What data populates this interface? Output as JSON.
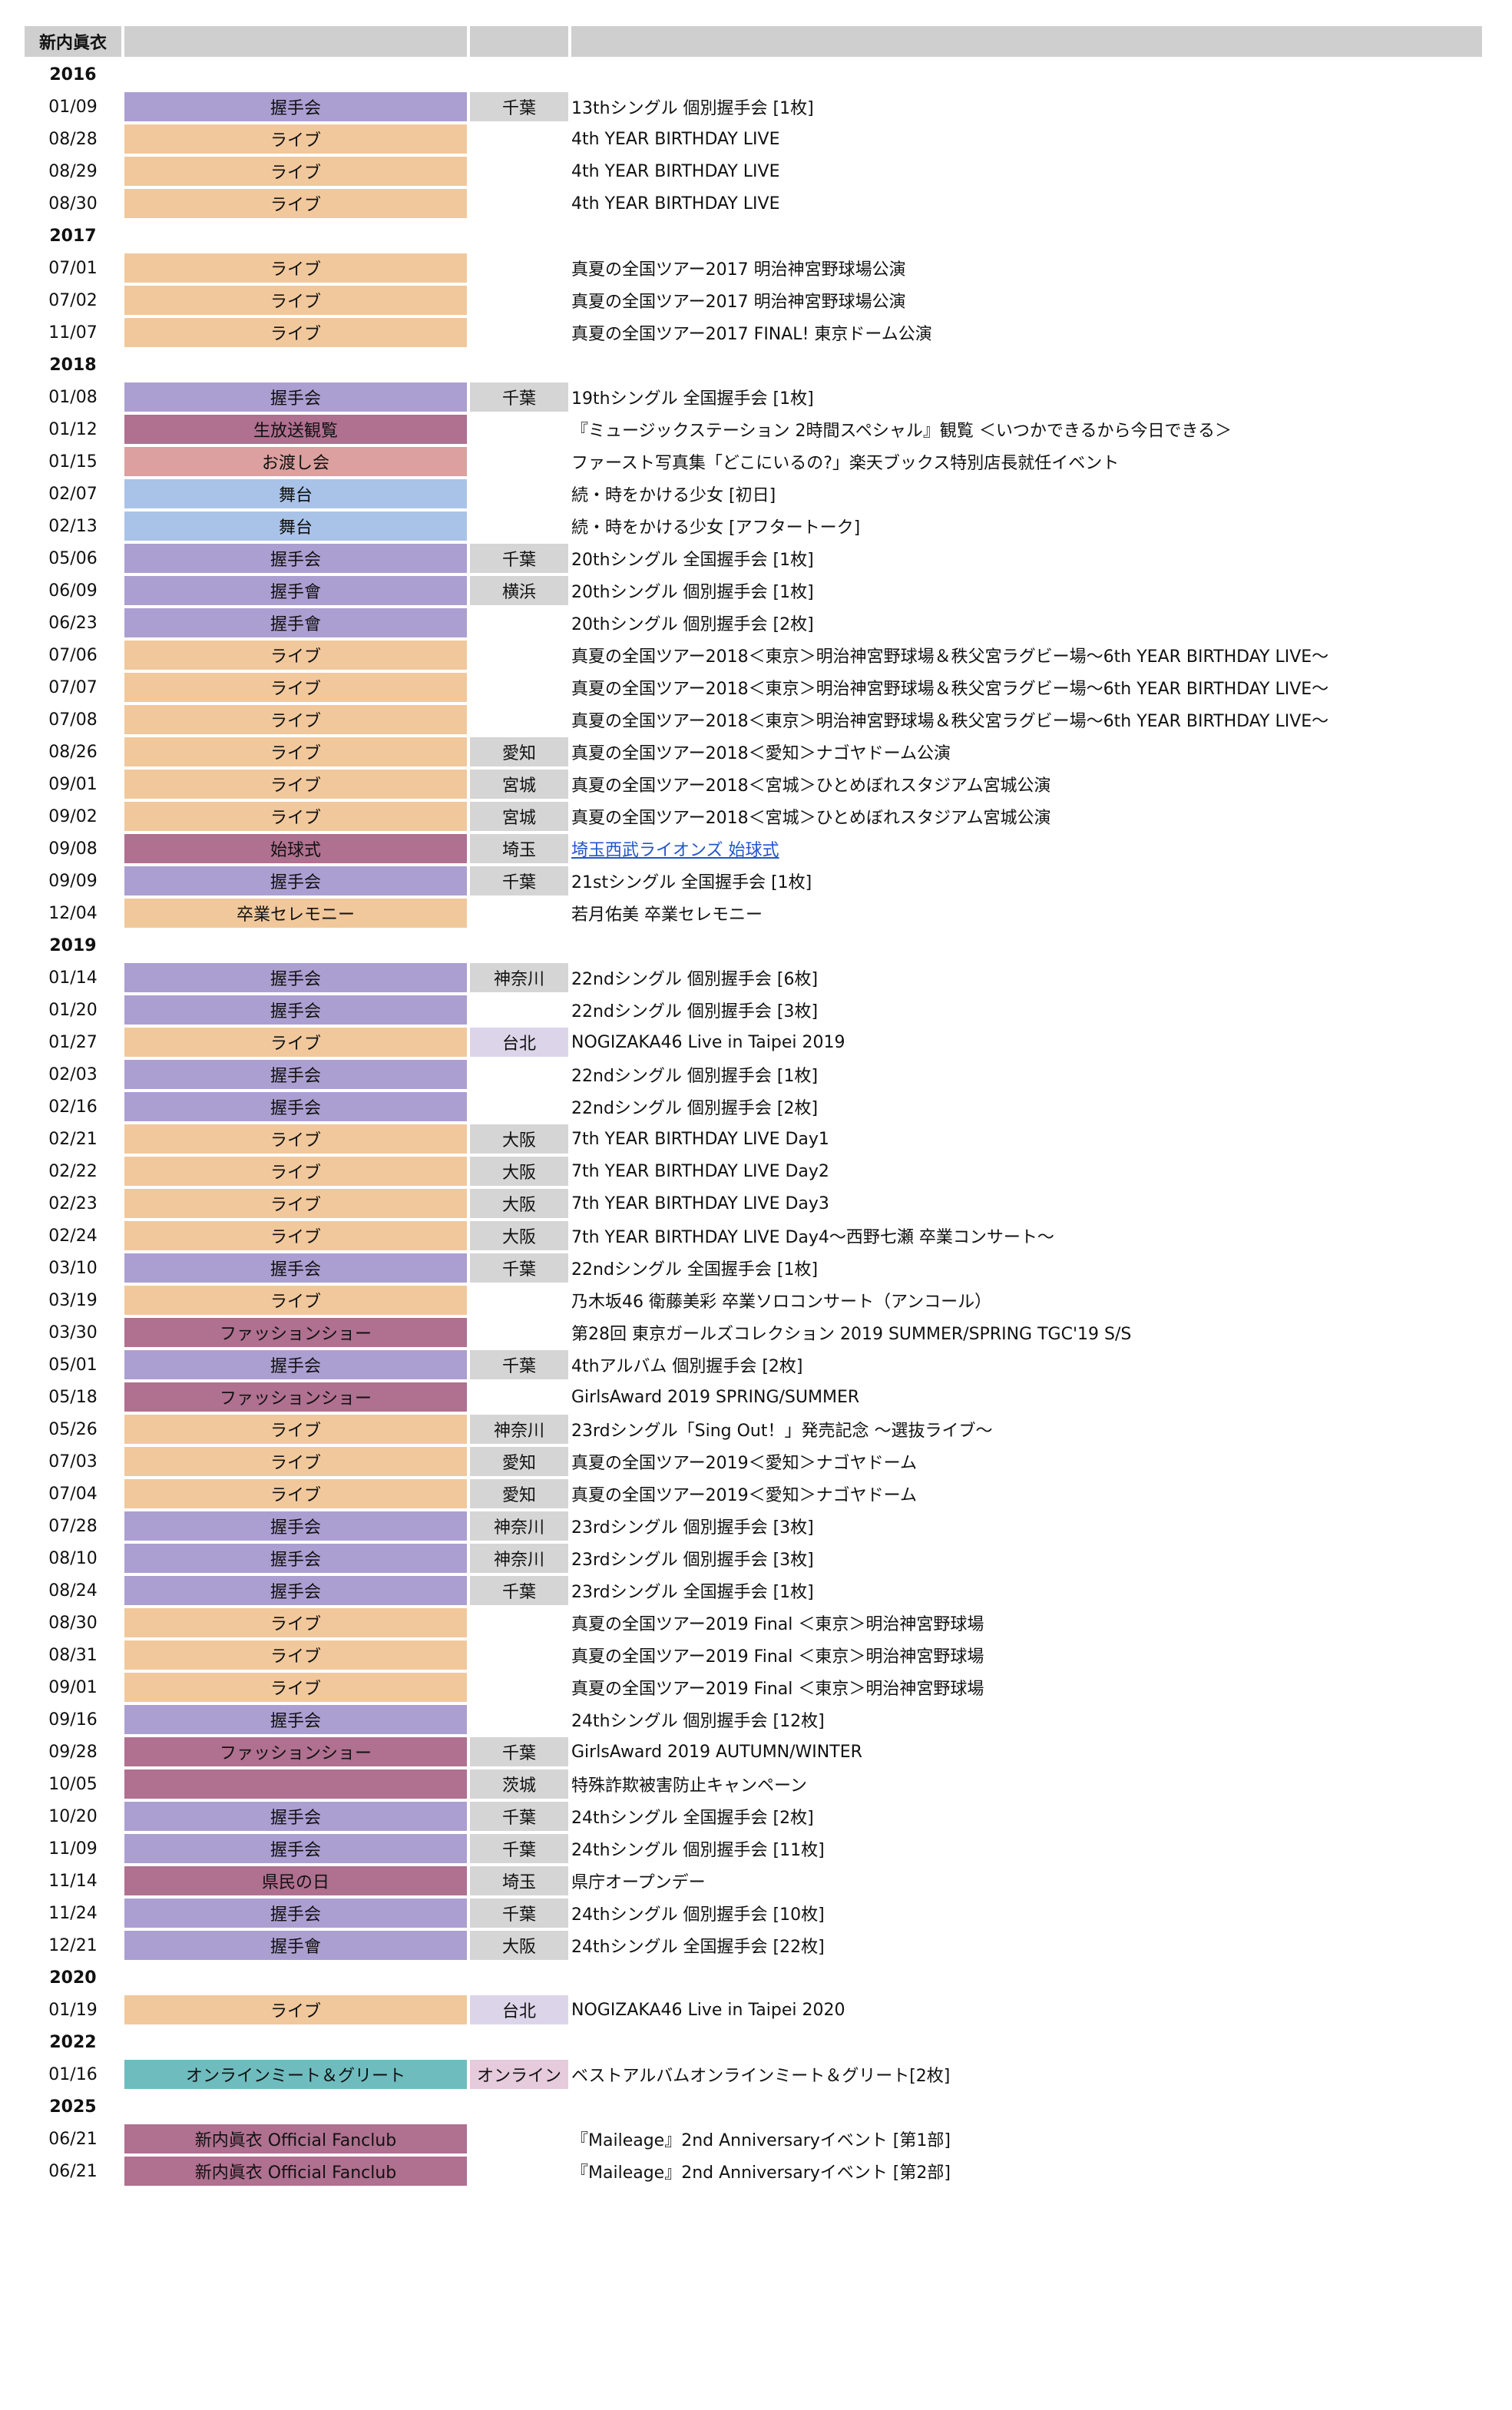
{
  "header": {
    "name": "新内眞衣"
  },
  "colors": {
    "握手会": "#ab9fd2",
    "握手會": "#ab9fd2",
    "ライブ": "#f1c89c",
    "生放送観覧": "#b07090",
    "お渡し会": "#dba09f",
    "舞台": "#a9c3e8",
    "始球式": "#b07090",
    "卒業セレモニー": "#f1c89c",
    "ファッションショー": "#b07090",
    "県民の日": "#b07090",
    "オンラインミート＆グリート": "#6fbcbf",
    "新内眞衣 Official Fanclub": "#b07090"
  },
  "years": [
    {
      "year": "2016",
      "events": [
        {
          "date": "01/09",
          "type": "握手会",
          "loc": "千葉",
          "desc": "13thシングル 個別握手会 [1枚]"
        },
        {
          "date": "08/28",
          "type": "ライブ",
          "loc": "",
          "desc": "4th YEAR BIRTHDAY LIVE"
        },
        {
          "date": "08/29",
          "type": "ライブ",
          "loc": "",
          "desc": "4th YEAR BIRTHDAY LIVE"
        },
        {
          "date": "08/30",
          "type": "ライブ",
          "loc": "",
          "desc": "4th YEAR BIRTHDAY LIVE"
        }
      ]
    },
    {
      "year": "2017",
      "events": [
        {
          "date": "07/01",
          "type": "ライブ",
          "loc": "",
          "desc": "真夏の全国ツアー2017 明治神宮野球場公演"
        },
        {
          "date": "07/02",
          "type": "ライブ",
          "loc": "",
          "desc": "真夏の全国ツアー2017 明治神宮野球場公演"
        },
        {
          "date": "11/07",
          "type": "ライブ",
          "loc": "",
          "desc": "真夏の全国ツアー2017 FINAL! 東京ドーム公演"
        }
      ]
    },
    {
      "year": "2018",
      "events": [
        {
          "date": "01/08",
          "type": "握手会",
          "loc": "千葉",
          "desc": "19thシングル 全国握手会 [1枚]"
        },
        {
          "date": "01/12",
          "type": "生放送観覧",
          "loc": "",
          "desc": "『ミュージックステーション 2時間スペシャル』観覧 ＜いつかできるから今日できる＞"
        },
        {
          "date": "01/15",
          "type": "お渡し会",
          "loc": "",
          "desc": "ファースト写真集「どこにいるの?」楽天ブックス特別店長就任イベント"
        },
        {
          "date": "02/07",
          "type": "舞台",
          "loc": "",
          "desc": "続・時をかける少女 [初日]"
        },
        {
          "date": "02/13",
          "type": "舞台",
          "loc": "",
          "desc": "続・時をかける少女 [アフタートーク]"
        },
        {
          "date": "05/06",
          "type": "握手会",
          "loc": "千葉",
          "desc": "20thシングル 全国握手会 [1枚]"
        },
        {
          "date": "06/09",
          "type": "握手會",
          "loc": "横浜",
          "desc": "20thシングル 個別握手会 [1枚]"
        },
        {
          "date": "06/23",
          "type": "握手會",
          "loc": "",
          "desc": "20thシングル 個別握手会 [2枚]"
        },
        {
          "date": "07/06",
          "type": "ライブ",
          "loc": "",
          "desc": "真夏の全国ツアー2018＜東京＞明治神宮野球場＆秩父宮ラグビー場〜6th YEAR BIRTHDAY LIVE〜"
        },
        {
          "date": "07/07",
          "type": "ライブ",
          "loc": "",
          "desc": "真夏の全国ツアー2018＜東京＞明治神宮野球場＆秩父宮ラグビー場〜6th YEAR BIRTHDAY LIVE〜"
        },
        {
          "date": "07/08",
          "type": "ライブ",
          "loc": "",
          "desc": "真夏の全国ツアー2018＜東京＞明治神宮野球場＆秩父宮ラグビー場〜6th YEAR BIRTHDAY LIVE〜"
        },
        {
          "date": "08/26",
          "type": "ライブ",
          "loc": "愛知",
          "desc": "真夏の全国ツアー2018＜愛知＞ナゴヤドーム公演"
        },
        {
          "date": "09/01",
          "type": "ライブ",
          "loc": "宮城",
          "desc": "真夏の全国ツアー2018＜宮城＞ひとめぼれスタジアム宮城公演"
        },
        {
          "date": "09/02",
          "type": "ライブ",
          "loc": "宮城",
          "desc": "真夏の全国ツアー2018＜宮城＞ひとめぼれスタジアム宮城公演"
        },
        {
          "date": "09/08",
          "type": "始球式",
          "loc": "埼玉",
          "desc": "埼玉西武ライオンズ 始球式",
          "link": true
        },
        {
          "date": "09/09",
          "type": "握手会",
          "loc": "千葉",
          "desc": "21stシングル 全国握手会 [1枚]"
        },
        {
          "date": "12/04",
          "type": "卒業セレモニー",
          "loc": "",
          "desc": "若月佑美 卒業セレモニー"
        }
      ]
    },
    {
      "year": "2019",
      "events": [
        {
          "date": "01/14",
          "type": "握手会",
          "loc": "神奈川",
          "desc": "22ndシングル 個別握手会 [6枚]"
        },
        {
          "date": "01/20",
          "type": "握手会",
          "loc": "",
          "desc": "22ndシングル 個別握手会 [3枚]"
        },
        {
          "date": "01/27",
          "type": "ライブ",
          "loc": "台北",
          "desc": "NOGIZAKA46 Live in Taipei 2019"
        },
        {
          "date": "02/03",
          "type": "握手会",
          "loc": "",
          "desc": "22ndシングル 個別握手会 [1枚]"
        },
        {
          "date": "02/16",
          "type": "握手会",
          "loc": "",
          "desc": "22ndシングル 個別握手会 [2枚]"
        },
        {
          "date": "02/21",
          "type": "ライブ",
          "loc": "大阪",
          "desc": "7th YEAR BIRTHDAY LIVE Day1"
        },
        {
          "date": "02/22",
          "type": "ライブ",
          "loc": "大阪",
          "desc": "7th YEAR BIRTHDAY LIVE Day2"
        },
        {
          "date": "02/23",
          "type": "ライブ",
          "loc": "大阪",
          "desc": "7th YEAR BIRTHDAY LIVE Day3"
        },
        {
          "date": "02/24",
          "type": "ライブ",
          "loc": "大阪",
          "desc": "7th YEAR BIRTHDAY LIVE Day4〜西野七瀬 卒業コンサート〜"
        },
        {
          "date": "03/10",
          "type": "握手会",
          "loc": "千葉",
          "desc": "22ndシングル 全国握手会 [1枚]"
        },
        {
          "date": "03/19",
          "type": "ライブ",
          "loc": "",
          "desc": "乃木坂46 衛藤美彩 卒業ソロコンサート（アンコール）"
        },
        {
          "date": "03/30",
          "type": "ファッションショー",
          "loc": "",
          "desc": "第28回 東京ガールズコレクション 2019 SUMMER/SPRING TGC'19 S/S"
        },
        {
          "date": "05/01",
          "type": "握手会",
          "loc": "千葉",
          "desc": "4thアルバム 個別握手会 [2枚]"
        },
        {
          "date": "05/18",
          "type": "ファッションショー",
          "loc": "",
          "desc": "GirlsAward 2019 SPRING/SUMMER"
        },
        {
          "date": "05/26",
          "type": "ライブ",
          "loc": "神奈川",
          "desc": "23rdシングル「Sing Out！」発売記念 〜選抜ライブ〜"
        },
        {
          "date": "07/03",
          "type": "ライブ",
          "loc": "愛知",
          "desc": "真夏の全国ツアー2019＜愛知＞ナゴヤドーム"
        },
        {
          "date": "07/04",
          "type": "ライブ",
          "loc": "愛知",
          "desc": "真夏の全国ツアー2019＜愛知＞ナゴヤドーム"
        },
        {
          "date": "07/28",
          "type": "握手会",
          "loc": "神奈川",
          "desc": "23rdシングル 個別握手会 [3枚]"
        },
        {
          "date": "08/10",
          "type": "握手会",
          "loc": "神奈川",
          "desc": "23rdシングル 個別握手会 [3枚]"
        },
        {
          "date": "08/24",
          "type": "握手会",
          "loc": "千葉",
          "desc": "23rdシングル 全国握手会 [1枚]"
        },
        {
          "date": "08/30",
          "type": "ライブ",
          "loc": "",
          "desc": "真夏の全国ツアー2019 Final ＜東京＞明治神宮野球場"
        },
        {
          "date": "08/31",
          "type": "ライブ",
          "loc": "",
          "desc": "真夏の全国ツアー2019 Final ＜東京＞明治神宮野球場"
        },
        {
          "date": "09/01",
          "type": "ライブ",
          "loc": "",
          "desc": "真夏の全国ツアー2019 Final ＜東京＞明治神宮野球場"
        },
        {
          "date": "09/16",
          "type": "握手会",
          "loc": "",
          "desc": "24thシングル 個別握手会 [12枚]"
        },
        {
          "date": "09/28",
          "type": "ファッションショー",
          "loc": "千葉",
          "desc": "GirlsAward 2019 AUTUMN/WINTER"
        },
        {
          "date": "10/05",
          "type": "",
          "loc": "茨城",
          "desc": "特殊詐欺被害防止キャンペーン",
          "color": "#b07090"
        },
        {
          "date": "10/20",
          "type": "握手会",
          "loc": "千葉",
          "desc": "24thシングル 全国握手会 [2枚]"
        },
        {
          "date": "11/09",
          "type": "握手会",
          "loc": "千葉",
          "desc": "24thシングル 個別握手会 [11枚]"
        },
        {
          "date": "11/14",
          "type": "県民の日",
          "loc": "埼玉",
          "desc": "県庁オープンデー"
        },
        {
          "date": "11/24",
          "type": "握手会",
          "loc": "千葉",
          "desc": "24thシングル 個別握手会 [10枚]"
        },
        {
          "date": "12/21",
          "type": "握手會",
          "loc": "大阪",
          "desc": "24thシングル 全国握手会 [22枚]"
        }
      ]
    },
    {
      "year": "2020",
      "events": [
        {
          "date": "01/19",
          "type": "ライブ",
          "loc": "台北",
          "desc": "NOGIZAKA46 Live in Taipei 2020"
        }
      ]
    },
    {
      "year": "2022",
      "events": [
        {
          "date": "01/16",
          "type": "オンラインミート＆グリート",
          "loc": "オンライン",
          "desc": "ベストアルバムオンラインミート＆グリート[2枚]"
        }
      ]
    },
    {
      "year": "2025",
      "events": [
        {
          "date": "06/21",
          "type": "新内眞衣 Official Fanclub",
          "loc": "",
          "desc": "『Maileage』2nd Anniversaryイベント [第1部]"
        },
        {
          "date": "06/21",
          "type": "新内眞衣 Official Fanclub",
          "loc": "",
          "desc": "『Maileage』2nd Anniversaryイベント [第2部]"
        }
      ]
    }
  ]
}
